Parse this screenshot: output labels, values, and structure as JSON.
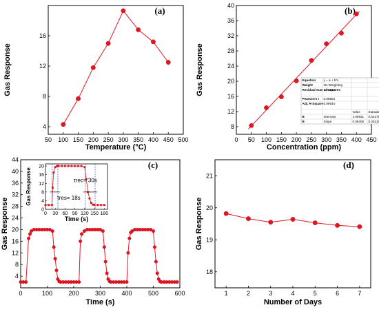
{
  "chart_data": [
    {
      "type": "line",
      "panel_label": "(a)",
      "xlabel": "Temperature (°C)",
      "ylabel": "Gas Response",
      "xlim": [
        50,
        500
      ],
      "ylim": [
        3,
        20
      ],
      "xticks": [
        50,
        100,
        150,
        200,
        250,
        300,
        350,
        400,
        450,
        500
      ],
      "yticks": [
        4,
        8,
        12,
        16
      ],
      "series": [
        {
          "x": [
            100,
            150,
            200,
            250,
            300,
            350,
            400,
            450
          ],
          "y": [
            4.3,
            7.7,
            11.8,
            15.0,
            19.3,
            16.8,
            15.2,
            12.5
          ]
        }
      ],
      "color": "#e4151f"
    },
    {
      "type": "scatter",
      "panel_label": "(b)",
      "xlabel": "Concentration (ppm)",
      "ylabel": "Gas Response",
      "xlim": [
        0,
        450
      ],
      "ylim": [
        6,
        40
      ],
      "xticks": [
        0,
        50,
        100,
        150,
        200,
        250,
        300,
        350,
        400,
        450
      ],
      "yticks": [
        8,
        12,
        16,
        20,
        24,
        28,
        32,
        36,
        40
      ],
      "series": [
        {
          "x": [
            50,
            100,
            150,
            200,
            250,
            300,
            350,
            400
          ],
          "y": [
            8.3,
            13.0,
            15.9,
            20.1,
            25.5,
            29.9,
            32.7,
            37.8
          ]
        }
      ],
      "fit_line": {
        "intercept": 4.00931,
        "slope": 0.08405
      },
      "fit_table": [
        [
          "Equation",
          "y = a + b*x",
          "",
          ""
        ],
        [
          "Weight",
          "No Weighting",
          "",
          ""
        ],
        [
          "Residual Sum of Squares",
          "2.91108",
          "",
          ""
        ],
        [
          "Pearson's r",
          "0.99804",
          "",
          ""
        ],
        [
          "Adj. R-Square",
          "0.99544",
          "",
          ""
        ],
        [
          "",
          "",
          "Value",
          "Standard Error"
        ],
        [
          "B",
          "Intercept",
          "4.00931",
          "0.54275"
        ],
        [
          "B",
          "Slope",
          "0.08405",
          "0.00215"
        ]
      ],
      "color": "#e4151f"
    },
    {
      "type": "line",
      "panel_label": "(c)",
      "xlabel": "Time (s)",
      "ylabel": "Gas Response",
      "xlim": [
        0,
        600
      ],
      "ylim": [
        0,
        44
      ],
      "xticks": [
        0,
        100,
        200,
        300,
        400,
        500,
        600
      ],
      "yticks": [
        4,
        8,
        12,
        16,
        20,
        24,
        28,
        32,
        36,
        40,
        44
      ],
      "series": [
        {
          "x": [
            0,
            10,
            20,
            30,
            35,
            40,
            50,
            60,
            70,
            80,
            90,
            100,
            110,
            120,
            125,
            130,
            135,
            140,
            145,
            150,
            160,
            170,
            180,
            190,
            200,
            210,
            220,
            225,
            230,
            240,
            250,
            260,
            270,
            280,
            290,
            300,
            310,
            315,
            320,
            325,
            330,
            335,
            340,
            350,
            360,
            370,
            380,
            390,
            400,
            405,
            410,
            415,
            420,
            430,
            440,
            450,
            460,
            470,
            480,
            490,
            500,
            505,
            510,
            515,
            520,
            525,
            530,
            540,
            550,
            560,
            570,
            580,
            590
          ],
          "y": [
            2,
            2,
            2,
            17,
            18.5,
            19.5,
            20,
            20,
            20,
            20,
            20,
            20,
            20,
            19.5,
            14,
            10,
            6,
            3,
            2.2,
            2,
            2,
            2,
            2,
            2,
            2,
            2,
            2,
            16,
            18.5,
            19.5,
            20,
            20,
            20,
            20,
            20,
            20,
            19.5,
            14,
            9,
            5,
            3,
            2.2,
            2,
            2,
            2,
            2,
            2,
            2,
            2,
            12,
            17,
            19,
            19.5,
            20,
            20,
            20,
            20,
            20,
            20,
            20,
            19.5,
            14,
            9,
            5,
            3,
            2.2,
            2,
            2,
            2,
            2,
            2,
            2,
            2
          ]
        }
      ],
      "inset": {
        "xlabel": "Time (s)",
        "ylabel": "Gas Response",
        "xlim": [
          0,
          190
        ],
        "ylim": [
          0,
          21
        ],
        "xticks": [
          0,
          30,
          60,
          90,
          120,
          150,
          180
        ],
        "yticks": [
          0,
          4,
          8,
          12,
          16,
          20
        ],
        "x": [
          0,
          10,
          20,
          22,
          25,
          30,
          35,
          40,
          50,
          60,
          70,
          80,
          90,
          100,
          110,
          120,
          125,
          130,
          135,
          140,
          145,
          150,
          160,
          170,
          180
        ],
        "y": [
          2,
          2,
          2,
          10,
          17,
          19.5,
          20,
          20,
          20,
          20,
          20,
          20,
          20,
          20,
          20,
          19.5,
          14,
          8,
          5,
          3,
          2.2,
          2,
          2,
          2,
          2
        ],
        "annotations": [
          {
            "text": "τres= 18s"
          },
          {
            "text": "τrec= 30s"
          }
        ],
        "markers_vertical": [
          20,
          38,
          122,
          152
        ]
      },
      "color": "#e4151f"
    },
    {
      "type": "line",
      "panel_label": "(d)",
      "xlabel": "Number of Days",
      "ylabel": "Gas Response",
      "xlim": [
        0.5,
        7.5
      ],
      "ylim": [
        17.5,
        21.5
      ],
      "xticks": [
        1,
        2,
        3,
        4,
        5,
        6,
        7
      ],
      "yticks": [
        18,
        19,
        20,
        21
      ],
      "series": [
        {
          "x": [
            1,
            2,
            3,
            4,
            5,
            6,
            7
          ],
          "y": [
            19.82,
            19.66,
            19.55,
            19.64,
            19.53,
            19.45,
            19.41
          ]
        }
      ],
      "color": "#e4151f"
    }
  ]
}
